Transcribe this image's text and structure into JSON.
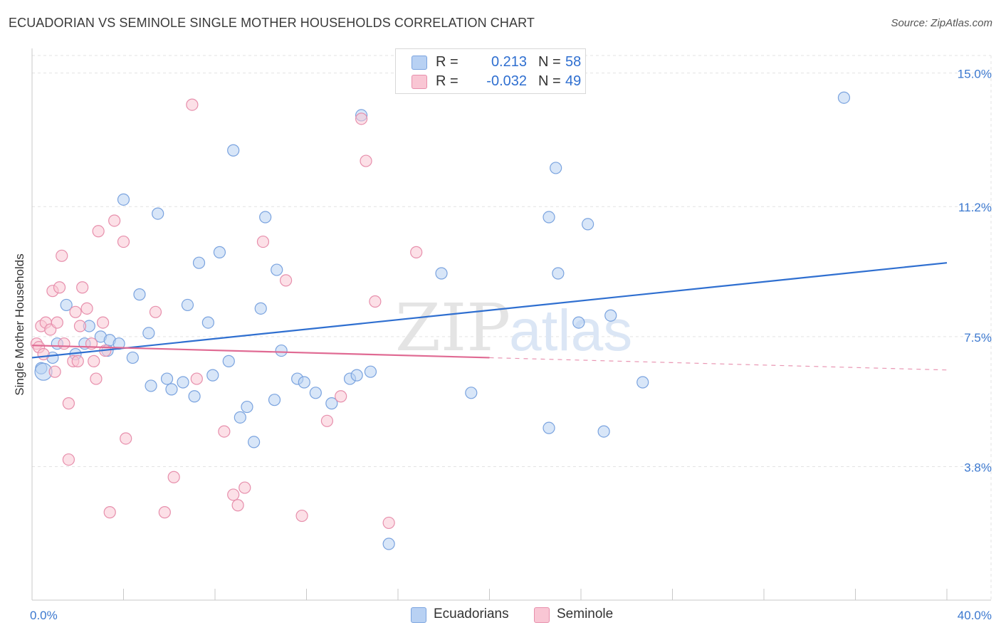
{
  "header": {
    "title": "ECUADORIAN VS SEMINOLE SINGLE MOTHER HOUSEHOLDS CORRELATION CHART",
    "source": "Source: ZipAtlas.com"
  },
  "watermark": {
    "zip": "ZIP",
    "atlas": "atlas"
  },
  "legend": {
    "rows": [
      {
        "label": "R =",
        "r": "0.213",
        "n_label": "N =",
        "n": "58",
        "color": "#b8d1f3",
        "border": "#7aa3df"
      },
      {
        "label": "R =",
        "r": "-0.032",
        "n_label": "N =",
        "n": "49",
        "color": "#f9c6d4",
        "border": "#e78fac"
      }
    ]
  },
  "bottom_legend": [
    {
      "label": "Ecuadorians",
      "color": "#b8d1f3",
      "border": "#7aa3df"
    },
    {
      "label": "Seminole",
      "color": "#f9c6d4",
      "border": "#e78fac"
    }
  ],
  "chart_data": {
    "type": "scatter",
    "title": "ECUADORIAN VS SEMINOLE SINGLE MOTHER HOUSEHOLDS CORRELATION CHART",
    "xlabel": "",
    "ylabel": "Single Mother Households",
    "xlim": [
      0,
      40
    ],
    "ylim": [
      0,
      15.5
    ],
    "x_tick_labels": [
      {
        "value": 0,
        "label": "0.0%"
      },
      {
        "value": 40,
        "label": "40.0%"
      }
    ],
    "y_tick_labels": [
      {
        "value": 3.8,
        "label": "3.8%"
      },
      {
        "value": 7.5,
        "label": "7.5%"
      },
      {
        "value": 11.2,
        "label": "11.2%"
      },
      {
        "value": 15.0,
        "label": "15.0%"
      }
    ],
    "grid": true,
    "series": [
      {
        "name": "Ecuadorians",
        "color": "#7aa3df",
        "fill": "#b8d1f3",
        "trend": {
          "x": [
            0,
            40
          ],
          "y": [
            6.9,
            9.6
          ],
          "color": "#2f6fd0",
          "dashed_from": null
        },
        "points": [
          [
            0.4,
            6.6
          ],
          [
            0.9,
            6.9
          ],
          [
            1.1,
            7.3
          ],
          [
            1.5,
            8.4
          ],
          [
            1.9,
            7.0
          ],
          [
            2.3,
            7.3
          ],
          [
            2.5,
            7.8
          ],
          [
            3.0,
            7.5
          ],
          [
            3.3,
            7.1
          ],
          [
            3.4,
            7.4
          ],
          [
            3.8,
            7.3
          ],
          [
            4.0,
            11.4
          ],
          [
            4.4,
            6.9
          ],
          [
            4.7,
            8.7
          ],
          [
            5.1,
            7.6
          ],
          [
            5.2,
            6.1
          ],
          [
            5.5,
            11.0
          ],
          [
            5.9,
            6.3
          ],
          [
            6.1,
            6.0
          ],
          [
            6.6,
            6.2
          ],
          [
            6.8,
            8.4
          ],
          [
            7.1,
            5.8
          ],
          [
            7.3,
            9.6
          ],
          [
            7.7,
            7.9
          ],
          [
            7.9,
            6.4
          ],
          [
            8.2,
            9.9
          ],
          [
            8.6,
            6.8
          ],
          [
            8.8,
            12.8
          ],
          [
            9.1,
            5.2
          ],
          [
            9.4,
            5.5
          ],
          [
            9.7,
            4.5
          ],
          [
            10.0,
            8.3
          ],
          [
            10.2,
            10.9
          ],
          [
            10.6,
            5.7
          ],
          [
            10.7,
            9.4
          ],
          [
            10.9,
            7.1
          ],
          [
            11.6,
            6.3
          ],
          [
            11.9,
            6.2
          ],
          [
            12.4,
            5.9
          ],
          [
            13.1,
            5.6
          ],
          [
            13.9,
            6.3
          ],
          [
            14.2,
            6.4
          ],
          [
            14.4,
            13.8
          ],
          [
            14.8,
            6.5
          ],
          [
            15.6,
            1.6
          ],
          [
            17.9,
            9.3
          ],
          [
            19.2,
            5.9
          ],
          [
            22.6,
            4.9
          ],
          [
            22.6,
            10.9
          ],
          [
            22.9,
            12.3
          ],
          [
            23.0,
            9.3
          ],
          [
            23.9,
            7.9
          ],
          [
            24.3,
            10.7
          ],
          [
            25.0,
            4.8
          ],
          [
            25.3,
            8.1
          ],
          [
            26.7,
            6.2
          ],
          [
            35.5,
            14.3
          ],
          [
            0.5,
            6.5
          ]
        ]
      },
      {
        "name": "Seminole",
        "color": "#e78fac",
        "fill": "#f9c6d4",
        "trend": {
          "x": [
            0,
            40
          ],
          "y": [
            7.25,
            6.55
          ],
          "color": "#e06a93",
          "dashed_from": 20
        },
        "points": [
          [
            0.2,
            7.3
          ],
          [
            0.3,
            7.2
          ],
          [
            0.4,
            7.8
          ],
          [
            0.5,
            7.0
          ],
          [
            0.6,
            7.9
          ],
          [
            0.8,
            7.7
          ],
          [
            0.9,
            8.8
          ],
          [
            1.0,
            6.5
          ],
          [
            1.1,
            7.9
          ],
          [
            1.2,
            8.9
          ],
          [
            1.3,
            9.8
          ],
          [
            1.4,
            7.3
          ],
          [
            1.6,
            5.6
          ],
          [
            1.6,
            4.0
          ],
          [
            1.8,
            6.8
          ],
          [
            1.9,
            8.2
          ],
          [
            2.0,
            6.8
          ],
          [
            2.1,
            7.8
          ],
          [
            2.2,
            8.9
          ],
          [
            2.4,
            8.3
          ],
          [
            2.6,
            7.3
          ],
          [
            2.7,
            6.8
          ],
          [
            2.8,
            6.3
          ],
          [
            2.9,
            10.5
          ],
          [
            3.1,
            7.9
          ],
          [
            3.2,
            7.1
          ],
          [
            3.4,
            2.5
          ],
          [
            3.6,
            10.8
          ],
          [
            4.0,
            10.2
          ],
          [
            4.1,
            4.6
          ],
          [
            5.4,
            8.2
          ],
          [
            5.8,
            2.5
          ],
          [
            6.2,
            3.5
          ],
          [
            7.0,
            14.1
          ],
          [
            7.2,
            6.3
          ],
          [
            8.4,
            4.8
          ],
          [
            8.8,
            3.0
          ],
          [
            9.0,
            2.7
          ],
          [
            9.3,
            3.2
          ],
          [
            10.1,
            10.2
          ],
          [
            11.1,
            9.1
          ],
          [
            11.8,
            2.4
          ],
          [
            12.9,
            5.1
          ],
          [
            13.5,
            5.8
          ],
          [
            14.4,
            13.7
          ],
          [
            14.6,
            12.5
          ],
          [
            15.0,
            8.5
          ],
          [
            15.6,
            2.2
          ],
          [
            16.8,
            9.9
          ]
        ]
      }
    ]
  }
}
